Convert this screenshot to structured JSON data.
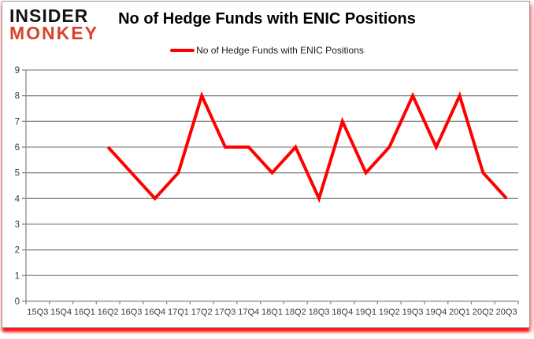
{
  "logo": {
    "line1": "INSIDER",
    "line2": "MONKEY"
  },
  "header": {
    "title": "No of Hedge Funds with ENIC Positions"
  },
  "legend": {
    "label": "No of Hedge Funds with ENIC Positions"
  },
  "colors": {
    "series_line": "#ff0000",
    "gridline": "#8c8c8c",
    "axis_line": "#8c8c8c",
    "axis_text": "#3d3d3d",
    "logo_black": "#141414",
    "logo_red": "#d9432e",
    "card_border": "#9a9a9a",
    "shadow_red": "#ff0000"
  },
  "chart_data": {
    "type": "line",
    "title": "No of Hedge Funds with ENIC Positions",
    "categories": [
      "15Q3",
      "15Q4",
      "16Q1",
      "16Q2",
      "16Q3",
      "16Q4",
      "17Q1",
      "17Q2",
      "17Q3",
      "17Q4",
      "18Q1",
      "18Q2",
      "18Q3",
      "18Q4",
      "19Q1",
      "19Q2",
      "19Q3",
      "19Q4",
      "20Q1",
      "20Q2",
      "20Q3"
    ],
    "series": [
      {
        "name": "No of Hedge Funds with ENIC Positions",
        "color": "#ff0000",
        "values": [
          null,
          null,
          null,
          6,
          5,
          4,
          5,
          8,
          6,
          6,
          5,
          6,
          4,
          7,
          5,
          6,
          8,
          6,
          8,
          5,
          4
        ]
      }
    ],
    "ylim": [
      0,
      9
    ],
    "yticks": [
      0,
      1,
      2,
      3,
      4,
      5,
      6,
      7,
      8,
      9
    ],
    "grid": true,
    "legend_position": "top-center"
  }
}
